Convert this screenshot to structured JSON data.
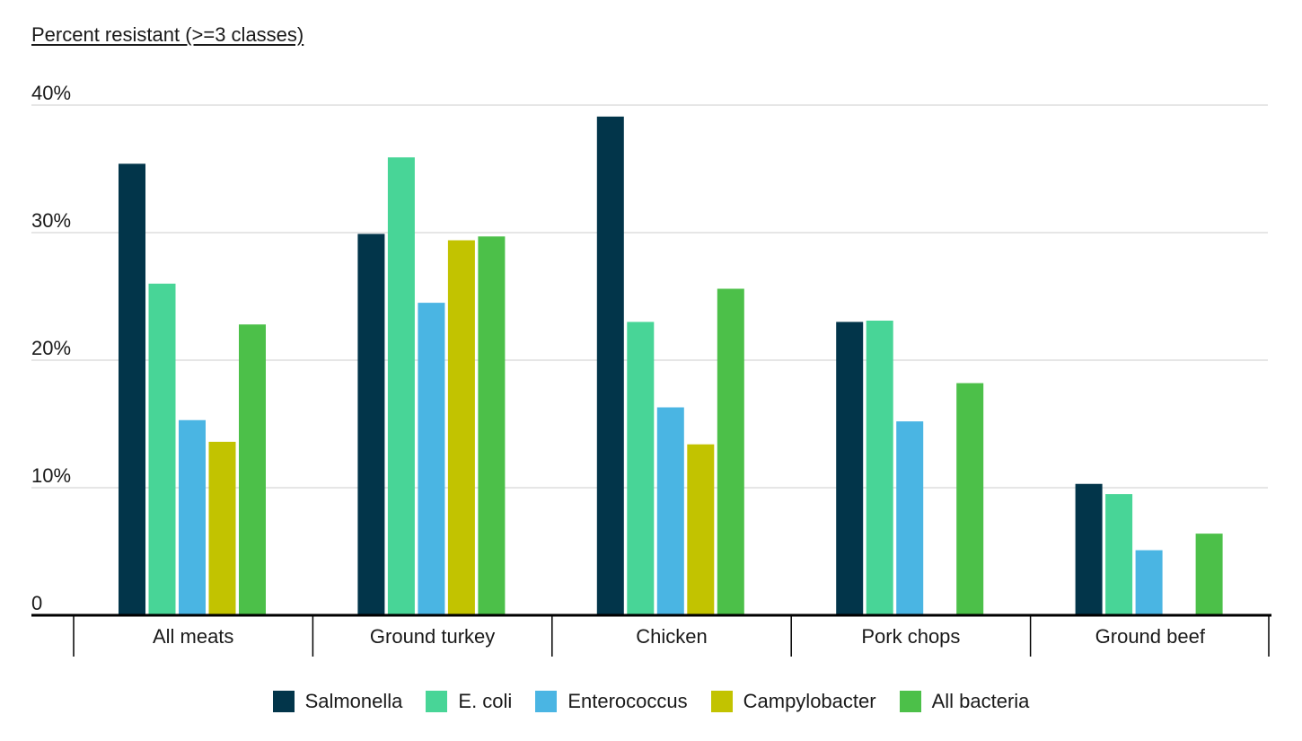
{
  "chart_data": {
    "type": "bar",
    "title": "",
    "ylabel": "Percent resistant (>=3 classes)",
    "xlabel": "",
    "ylim": [
      0,
      40
    ],
    "yticks": [
      {
        "value": 0,
        "label": "0"
      },
      {
        "value": 10,
        "label": "10%"
      },
      {
        "value": 20,
        "label": "20%"
      },
      {
        "value": 30,
        "label": "30%"
      },
      {
        "value": 40,
        "label": "40%"
      }
    ],
    "grid": true,
    "legend_position": "bottom-center",
    "categories": [
      "All meats",
      "Ground turkey",
      "Chicken",
      "Pork chops",
      "Ground beef"
    ],
    "series": [
      {
        "name": "Salmonella",
        "color": "#02354a",
        "values": [
          35.4,
          29.9,
          39.1,
          23.0,
          10.3
        ]
      },
      {
        "name": "E. coli",
        "color": "#48d597",
        "values": [
          26.0,
          35.9,
          23.0,
          23.1,
          9.5
        ]
      },
      {
        "name": "Enterococcus",
        "color": "#4ab5e3",
        "values": [
          15.3,
          24.5,
          16.3,
          15.2,
          5.1
        ]
      },
      {
        "name": "Campylobacter",
        "color": "#c2c300",
        "values": [
          13.6,
          29.4,
          13.4,
          null,
          null
        ]
      },
      {
        "name": "All bacteria",
        "color": "#4cc049",
        "values": [
          22.8,
          29.7,
          25.6,
          18.2,
          6.4
        ]
      }
    ]
  }
}
